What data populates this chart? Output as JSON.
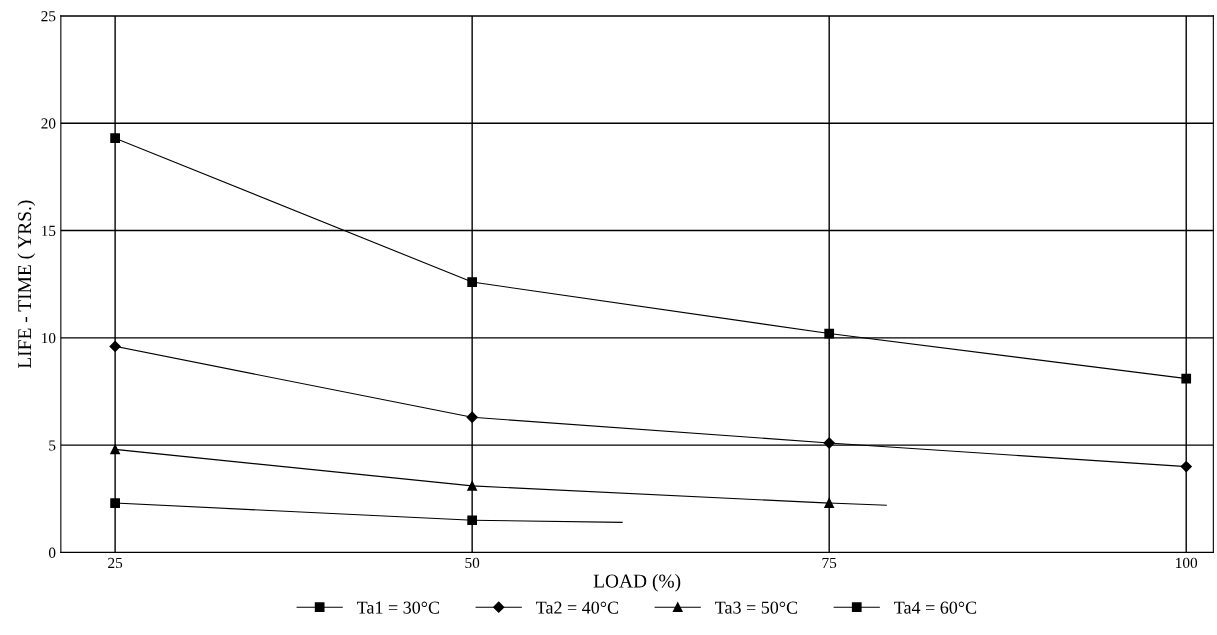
{
  "chart_data": {
    "type": "line",
    "xlabel": "LOAD (%)",
    "ylabel": "LIFE - TIME ( YRS.)",
    "xlim": [
      21.2,
      101.9
    ],
    "xticks": [
      25,
      50,
      75,
      100
    ],
    "ylim": [
      0,
      25
    ],
    "yticks": [
      0,
      5,
      10,
      15,
      20,
      25
    ],
    "grid": true,
    "legend": "bottom",
    "line_style": "solid",
    "series": [
      {
        "name": "Ta1 = 30°C",
        "color": "#000000",
        "marker": "square",
        "x": [
          25,
          50,
          75,
          100
        ],
        "values": [
          19.3,
          12.6,
          10.2,
          8.1
        ]
      },
      {
        "name": "Ta2 = 40°C",
        "color": "#000000",
        "marker": "diamond",
        "x": [
          25,
          50,
          75,
          100
        ],
        "values": [
          9.6,
          6.3,
          5.1,
          4.0
        ]
      },
      {
        "name": "Ta3 = 50°C",
        "color": "#000000",
        "marker": "triangle",
        "x": [
          25,
          50,
          75
        ],
        "values": [
          4.8,
          3.1,
          2.3
        ]
      },
      {
        "name": "Ta4 = 60°C",
        "color": "#000000",
        "marker": "square",
        "x": [
          25,
          50
        ],
        "values": [
          2.3,
          1.5
        ]
      },
      {
        "color": "#000000",
        "marker": "none",
        "x": [
          75,
          79
        ],
        "values": [
          2.3,
          2.2
        ]
      },
      {
        "color": "#000000",
        "marker": "none",
        "x": [
          50,
          60.5
        ],
        "values": [
          1.5,
          1.4
        ]
      }
    ]
  }
}
